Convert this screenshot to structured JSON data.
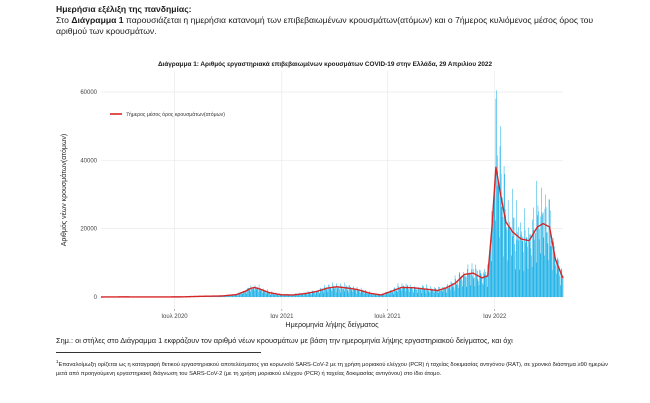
{
  "page": {
    "heading": "Ημερήσια εξέλιξη της πανδημίας:",
    "intro_pre": "Στο ",
    "intro_bold": "Διάγραμμα 1",
    "intro_post": " παρουσιάζεται η ημερήσια κατανομή των επιβεβαιωμένων κρουσμάτων(ατόμων) και ο 7ήμερος κυλιόμενος μέσος όρος του αριθμού των κρουσμάτων.",
    "note": "Σημ.: οι στήλες στο Διάγραμμα 1 εκφράζουν τον αριθμό νέων κρουσμάτων με βάση την ημερομηνία λήψης εργαστηριακού δείγματος, και όχι",
    "footnote_mark": "1",
    "footnote": "Επαναλοίμωξη ορίζεται ως η καταγραφή θετικού εργαστηριακού αποτελέσματος για κορωνοϊό SARS-CoV-2 με τη χρήση μοριακού ελέγχου (PCR) ή ταχείας δοκιμασίας αντιγόνου (RAT), σε χρονικό διάστημα ≥90 ημερών μετά από προηγούμενη εργαστηριακή διάγνωση του SARS-CoV-2 (με τη χρήση μοριακού ελέγχου (PCR) ή ταχείας δοκιμασίας αντιγόνου) στο ίδιο άτομο."
  },
  "chart_data": {
    "type": "bar",
    "title": "Διάγραμμα 1: Αριθμός εργαστηριακά επιβεβαιωμένων κρουσμάτων COVID-19 στην Ελλάδα, 29 Απριλίου 2022",
    "xlabel": "Ημερομηνία λήψης δείγματος",
    "ylabel": "Αριθμός νέων κρουσμάτων(ατόμων)",
    "ylim": [
      0,
      65000
    ],
    "yticks": [
      0,
      20000,
      40000,
      60000
    ],
    "x_range": [
      "2020-02-26",
      "2022-04-28"
    ],
    "xticks": [
      {
        "date": "2020-07-01",
        "label": "Ιουλ 2020"
      },
      {
        "date": "2021-01-01",
        "label": "Ιαν 2021"
      },
      {
        "date": "2021-07-01",
        "label": "Ιουλ 2021"
      },
      {
        "date": "2022-01-01",
        "label": "Ιαν 2022"
      }
    ],
    "grid": true,
    "legend_position": "top-left",
    "bar_color": "#1ab0e6",
    "line_color": "#d62728",
    "series": [
      {
        "name": "7ήμερος μέσος όρος κρουσμάτων(ατόμων)",
        "style": "line",
        "points": [
          [
            "2020-02-26",
            0
          ],
          [
            "2020-04-01",
            40
          ],
          [
            "2020-05-15",
            20
          ],
          [
            "2020-07-15",
            40
          ],
          [
            "2020-08-15",
            200
          ],
          [
            "2020-09-20",
            300
          ],
          [
            "2020-10-15",
            700
          ],
          [
            "2020-11-01",
            1800
          ],
          [
            "2020-11-08",
            2500
          ],
          [
            "2020-11-15",
            2800
          ],
          [
            "2020-11-25",
            2300
          ],
          [
            "2020-12-10",
            1300
          ],
          [
            "2020-12-31",
            650
          ],
          [
            "2021-01-20",
            600
          ],
          [
            "2021-02-10",
            1000
          ],
          [
            "2021-03-01",
            1600
          ],
          [
            "2021-03-20",
            2600
          ],
          [
            "2021-04-05",
            3000
          ],
          [
            "2021-04-20",
            2700
          ],
          [
            "2021-05-10",
            2200
          ],
          [
            "2021-06-01",
            1100
          ],
          [
            "2021-06-20",
            600
          ],
          [
            "2021-07-10",
            1800
          ],
          [
            "2021-07-25",
            2800
          ],
          [
            "2021-08-15",
            2700
          ],
          [
            "2021-09-10",
            2200
          ],
          [
            "2021-09-25",
            1900
          ],
          [
            "2021-10-10",
            2700
          ],
          [
            "2021-10-25",
            4000
          ],
          [
            "2021-11-10",
            6600
          ],
          [
            "2021-11-25",
            7000
          ],
          [
            "2021-12-10",
            5600
          ],
          [
            "2021-12-20",
            6200
          ],
          [
            "2021-12-27",
            20000
          ],
          [
            "2022-01-03",
            38000
          ],
          [
            "2022-01-10",
            31000
          ],
          [
            "2022-01-20",
            22000
          ],
          [
            "2022-02-01",
            19000
          ],
          [
            "2022-02-15",
            17000
          ],
          [
            "2022-03-01",
            16500
          ],
          [
            "2022-03-15",
            20500
          ],
          [
            "2022-03-25",
            21500
          ],
          [
            "2022-04-05",
            20500
          ],
          [
            "2022-04-15",
            11000
          ],
          [
            "2022-04-28",
            5500
          ]
        ]
      }
    ]
  }
}
